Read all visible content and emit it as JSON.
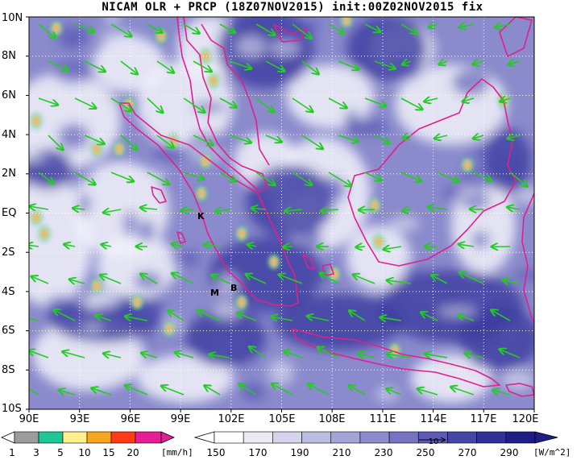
{
  "title": "NICAM OLR + PRCP (18Z07NOV2015) init:00Z02NOV2015 fix",
  "y_axis": {
    "labels": [
      "10N",
      "8N",
      "6N",
      "4N",
      "2N",
      "EQ",
      "2S",
      "4S",
      "6S",
      "8S",
      "10S"
    ]
  },
  "x_axis": {
    "labels": [
      "90E",
      "93E",
      "96E",
      "99E",
      "102E",
      "105E",
      "108E",
      "111E",
      "114E",
      "117E",
      "120E"
    ]
  },
  "markers": {
    "k": "K",
    "m": "M",
    "b": "B"
  },
  "precip_colorbar": {
    "labels": [
      "1",
      "3",
      "5",
      "10",
      "15",
      "20"
    ],
    "unit": "[mm/h]",
    "colors": [
      "#ffffff",
      "#9c9c9c",
      "#1ec896",
      "#fff08c",
      "#f5a51e",
      "#ff3c14",
      "#e61e96"
    ]
  },
  "olr_colorbar": {
    "labels": [
      "150",
      "170",
      "190",
      "210",
      "230",
      "250",
      "270",
      "290"
    ],
    "unit": "[W/m^2]",
    "colors": [
      "#ffffff",
      "#eaeaf6",
      "#d4d4ee",
      "#bcbce3",
      "#a4a4d8",
      "#8c8ccc",
      "#7474c0",
      "#5c5cb4",
      "#4646a6",
      "#323296",
      "#1e1e86"
    ]
  },
  "vector_reference": "10",
  "colors": {
    "coast": "#e0208c",
    "wind": "#22cc22",
    "cloud_dark": "#3c3ca0",
    "grid": "#ffffff"
  }
}
